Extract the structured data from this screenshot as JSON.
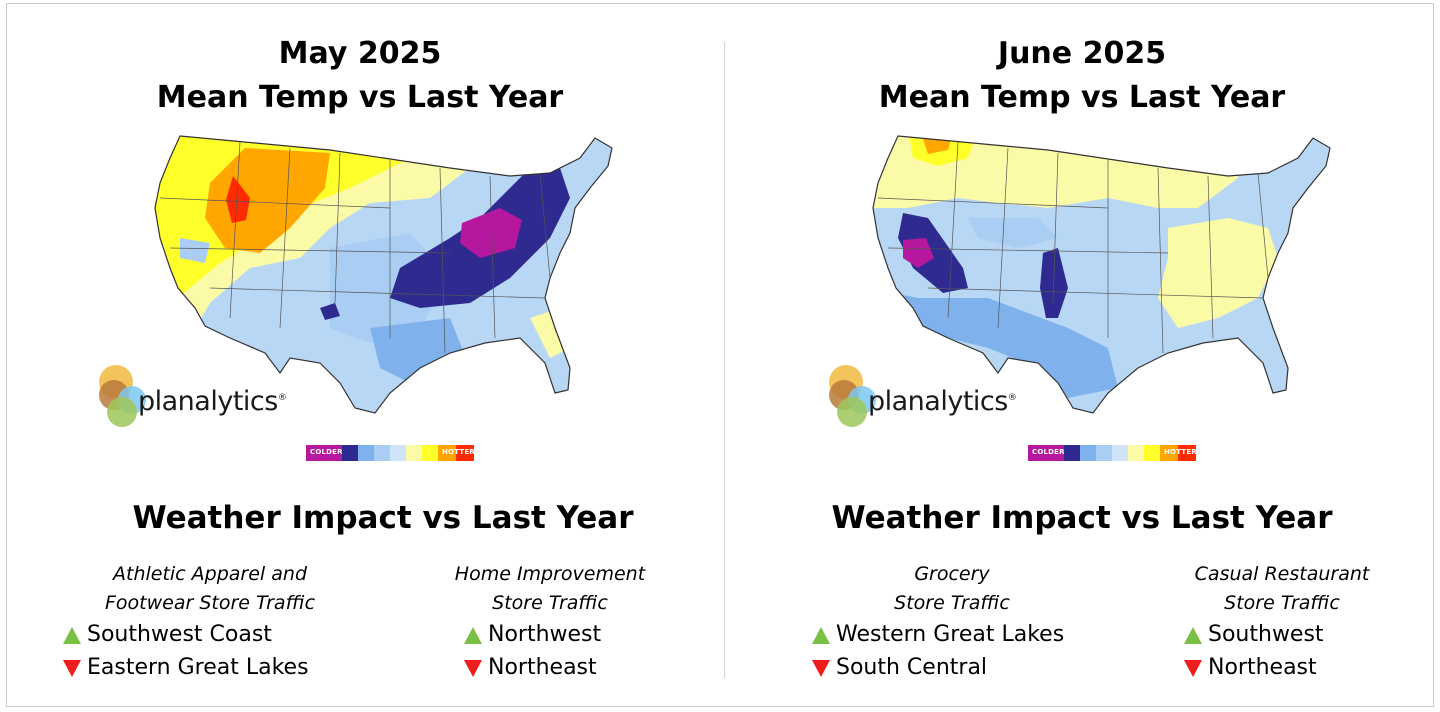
{
  "left": {
    "title": [
      "May 2025",
      "Mean Temp vs Last Year"
    ],
    "logo_text": "planalytics",
    "logo_mark": "®",
    "scale": {
      "colder_label": "COLDER",
      "hotter_label": "HOTTER",
      "colors": [
        "#b5179e",
        "#2e2a8f",
        "#7fb2ec",
        "#a9cdf3",
        "#cfe4f8",
        "#fbfaa6",
        "#ffff2a",
        "#ffa600",
        "#ff2a00"
      ]
    },
    "impact_title": "Weather Impact vs Last Year",
    "columns": [
      {
        "caption": [
          "Athletic Apparel and",
          "Footwear Store Traffic"
        ],
        "items": [
          {
            "direction": "up",
            "region": "Southwest Coast"
          },
          {
            "direction": "down",
            "region": "Eastern Great Lakes"
          }
        ]
      },
      {
        "caption": [
          "Home Improvement",
          "Store Traffic"
        ],
        "items": [
          {
            "direction": "up",
            "region": "Northwest"
          },
          {
            "direction": "down",
            "region": "Northeast"
          }
        ]
      }
    ]
  },
  "right": {
    "title": [
      "June 2025",
      "Mean Temp vs Last Year"
    ],
    "logo_text": "planalytics",
    "logo_mark": "®",
    "scale": {
      "colder_label": "COLDER",
      "hotter_label": "HOTTER",
      "colors": [
        "#b5179e",
        "#2e2a8f",
        "#7fb2ec",
        "#a9cdf3",
        "#cfe4f8",
        "#fbfaa6",
        "#ffff2a",
        "#ffa600",
        "#ff2a00"
      ]
    },
    "impact_title": "Weather Impact vs Last Year",
    "columns": [
      {
        "caption": [
          "Grocery",
          "Store Traffic"
        ],
        "items": [
          {
            "direction": "up",
            "region": "Western Great Lakes"
          },
          {
            "direction": "down",
            "region": "South Central"
          }
        ]
      },
      {
        "caption": [
          "Casual Restaurant",
          "Store Traffic"
        ],
        "items": [
          {
            "direction": "up",
            "region": "Southwest"
          },
          {
            "direction": "down",
            "region": "Northeast"
          }
        ]
      }
    ]
  }
}
